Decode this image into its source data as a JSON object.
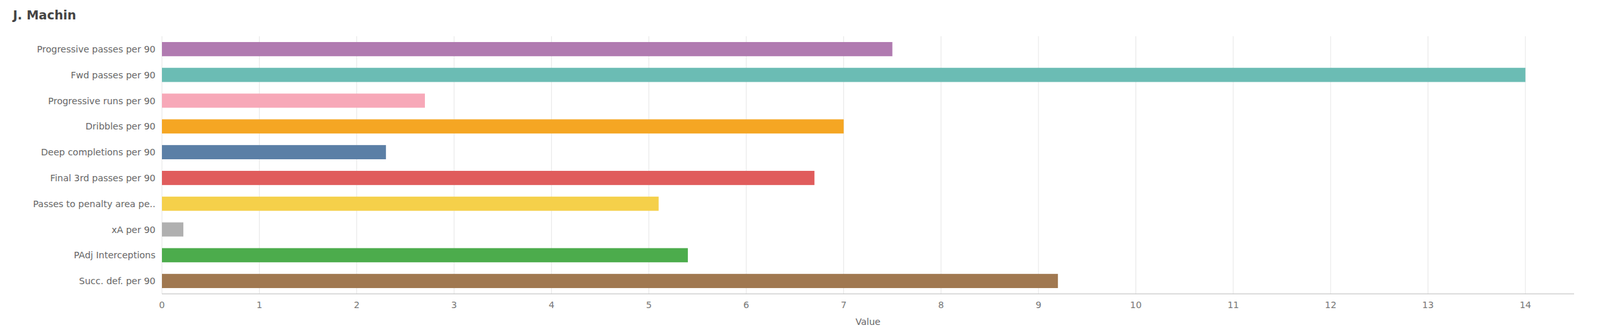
{
  "chart_data": {
    "type": "bar",
    "orientation": "horizontal",
    "title": "J. Machin",
    "categories": [
      "Progressive passes per 90",
      "Fwd passes per 90",
      "Progressive runs per 90",
      "Dribbles per 90",
      "Deep completions per 90",
      "Final 3rd passes per 90",
      "Passes to penalty area pe..",
      "xA per 90",
      "PAdj Interceptions",
      "Succ. def. per 90"
    ],
    "values": [
      7.5,
      14.0,
      2.7,
      7.0,
      2.3,
      6.7,
      5.1,
      0.22,
      5.4,
      9.2
    ],
    "colors": [
      "#b07ab0",
      "#6bbcb4",
      "#f7a8b8",
      "#f5a623",
      "#5b7fa6",
      "#e05c5c",
      "#f5d04a",
      "#b0b0b0",
      "#4cac4c",
      "#a07850"
    ],
    "xlabel": "Value",
    "xlim": [
      0,
      14.5
    ],
    "xticks": [
      0,
      1,
      2,
      3,
      4,
      5,
      6,
      7,
      8,
      9,
      10,
      11,
      12,
      13,
      14
    ],
    "grid": true
  }
}
